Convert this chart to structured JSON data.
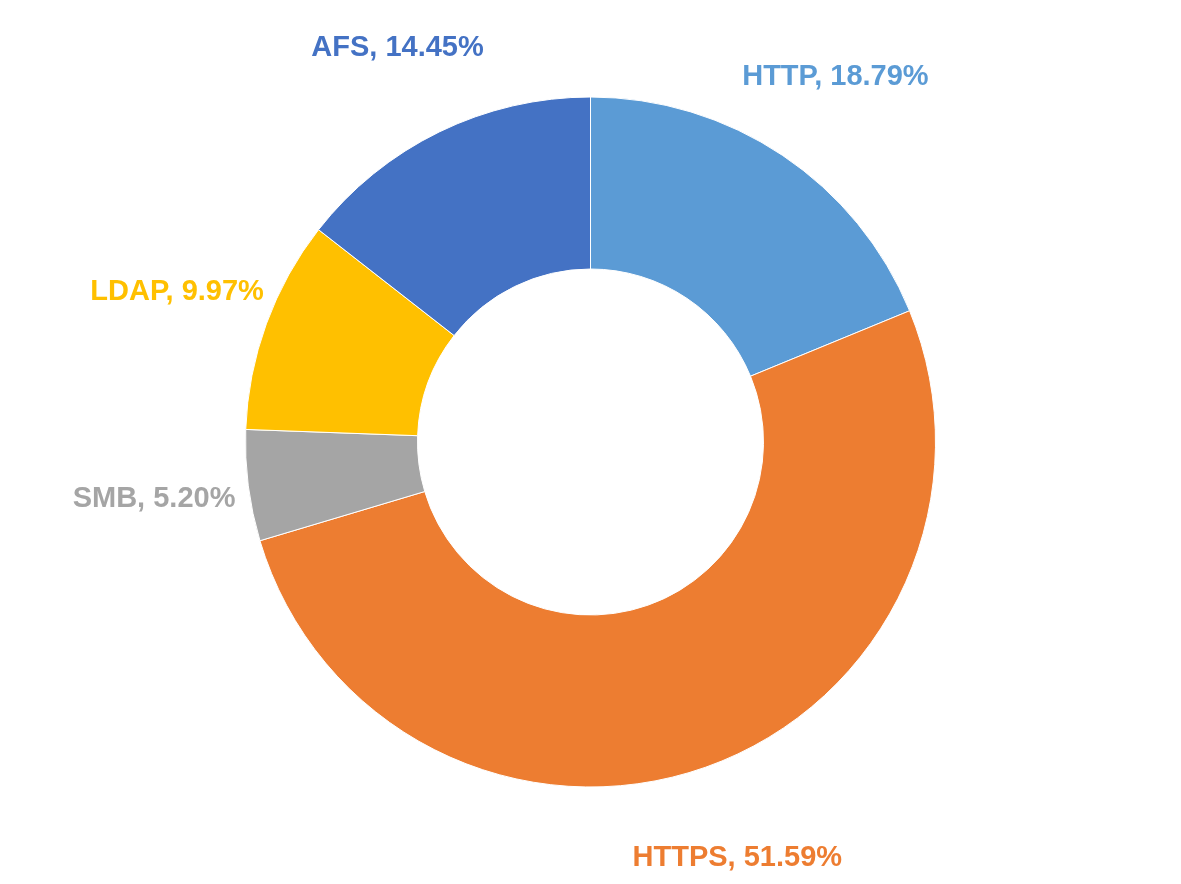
{
  "chart_data": {
    "type": "donut",
    "categories": [
      "HTTP",
      "HTTPS",
      "SMB",
      "LDAP",
      "AFS"
    ],
    "values": [
      18.79,
      51.59,
      5.2,
      9.97,
      14.45
    ],
    "colors": [
      "#5b9bd5",
      "#ed7d31",
      "#a5a5a5",
      "#ffc000",
      "#4472c4"
    ],
    "value_labels": [
      "18.79%",
      "51.59%",
      "5.20%",
      "9.97%",
      "14.45%"
    ]
  }
}
